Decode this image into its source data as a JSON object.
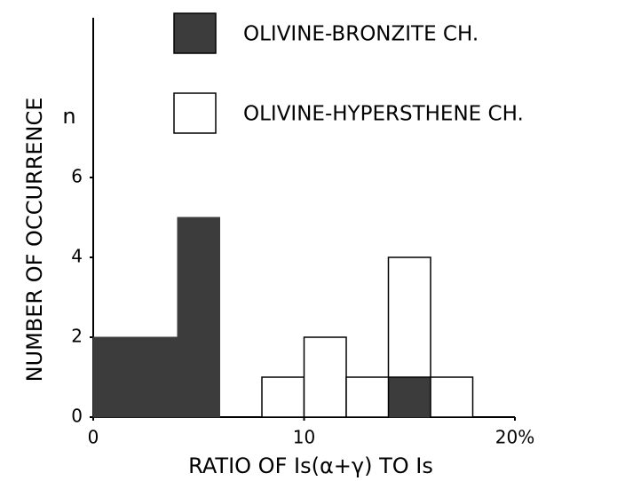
{
  "chart_data": {
    "type": "histogram",
    "stacked": true,
    "y_label": "NUMBER OF OCCURRENCE",
    "y_unit": "n",
    "x_label": "RATIO OF Is(α+γ) TO Is",
    "bins": [
      0,
      2,
      4,
      6,
      8,
      10,
      12,
      14,
      16,
      18
    ],
    "series": [
      {
        "name": "OLIVINE-BRONZITE CH.",
        "color": "#3c3c3c",
        "values": [
          2,
          2,
          5,
          0,
          0,
          0,
          0,
          1,
          0
        ]
      },
      {
        "name": "OLIVINE-HYPERSTHENE CH.",
        "color": "#ffffff",
        "values": [
          0,
          0,
          0,
          0,
          1,
          2,
          1,
          3,
          1
        ]
      }
    ],
    "xlim": [
      0,
      20
    ],
    "ylim": [
      0,
      10
    ],
    "xticks": [
      0,
      10,
      {
        "value": 20,
        "label": "20%"
      }
    ],
    "yticks": [
      0,
      2,
      4,
      6
    ],
    "legend": "top-right"
  }
}
